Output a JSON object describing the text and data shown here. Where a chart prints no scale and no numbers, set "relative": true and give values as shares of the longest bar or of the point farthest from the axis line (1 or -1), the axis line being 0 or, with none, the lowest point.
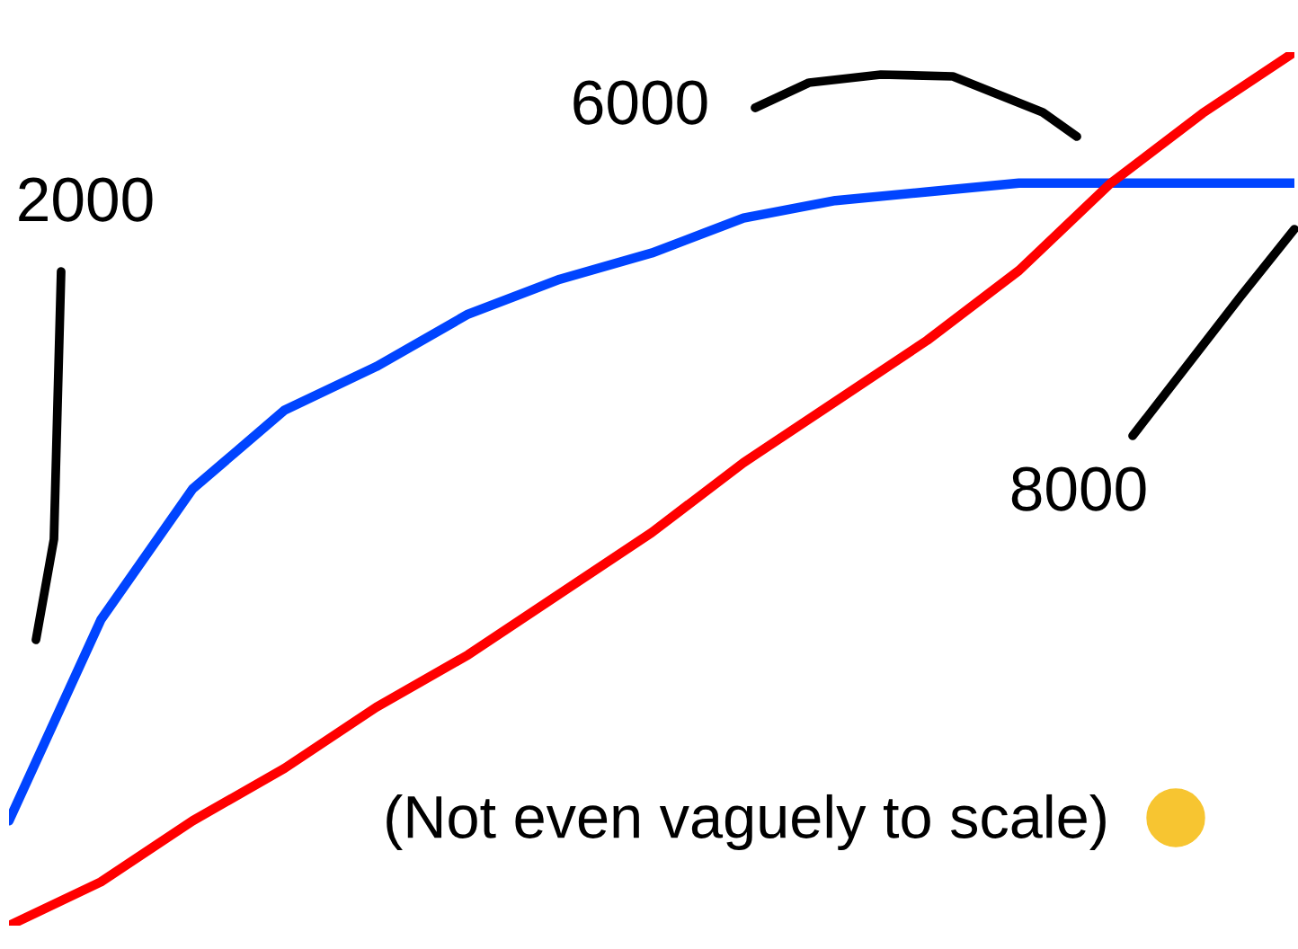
{
  "chart_data": {
    "type": "line",
    "relative": true,
    "categories": [
      null,
      null,
      null,
      null,
      null,
      null,
      null,
      null,
      null,
      null,
      null,
      null,
      null,
      null,
      null
    ],
    "series": [
      {
        "color": "#0044ff",
        "values": [
          0.12,
          0.35,
          0.5,
          0.59,
          0.64,
          0.7,
          0.74,
          0.77,
          0.81,
          0.83,
          0.84,
          0.85,
          0.85,
          0.85,
          0.85
        ]
      },
      {
        "color": "#ff0000",
        "values": [
          0,
          0.05,
          0.12,
          0.18,
          0.25,
          0.31,
          0.38,
          0.45,
          0.53,
          0.6,
          0.67,
          0.75,
          0.85,
          0.93,
          1
        ]
      }
    ],
    "annotations": [
      "2000",
      "6000",
      "8000",
      "(Not even vaguely to scale)"
    ]
  }
}
